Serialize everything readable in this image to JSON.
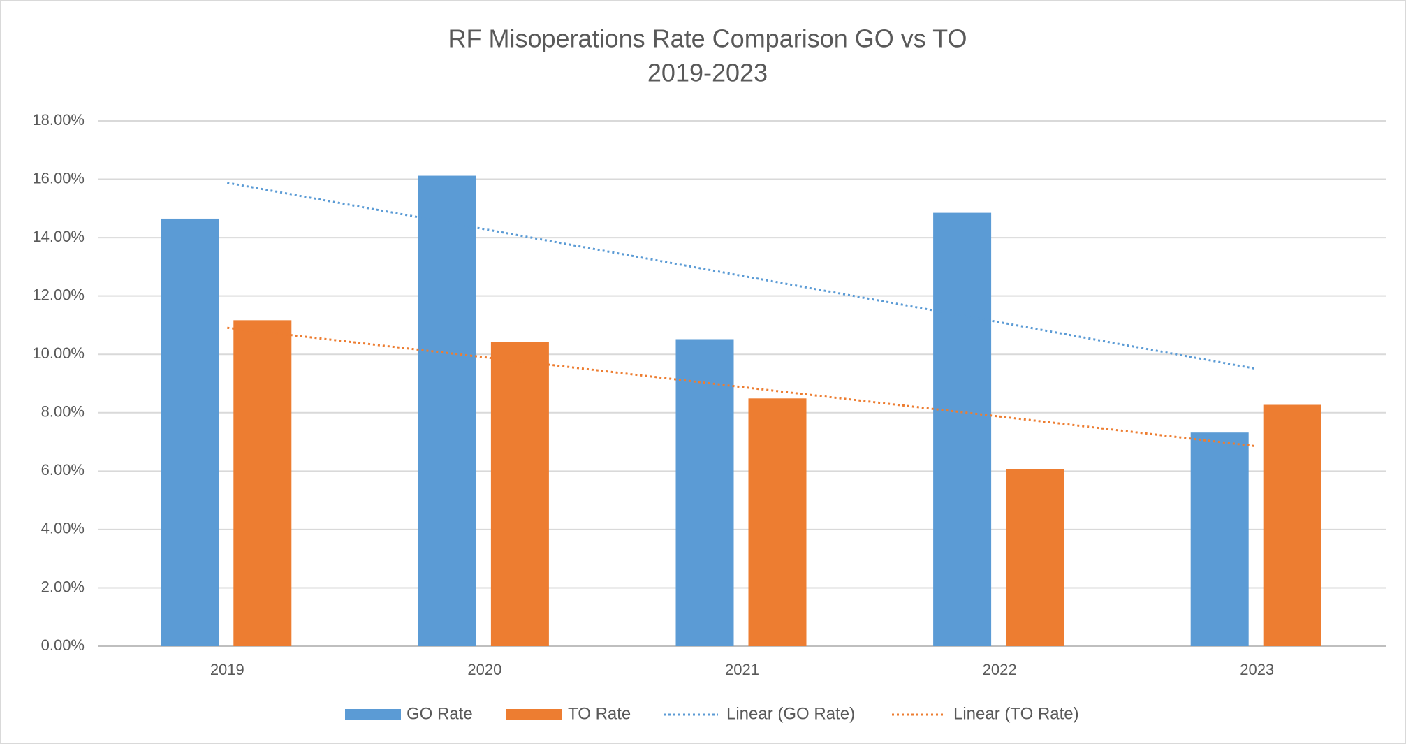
{
  "chart_data": {
    "type": "bar",
    "title": "RF Misoperations Rate Comparison GO vs TO",
    "subtitle": "2019-2023",
    "categories": [
      "2019",
      "2020",
      "2021",
      "2022",
      "2023"
    ],
    "series": [
      {
        "name": "GO Rate",
        "type": "bar",
        "color": "#5b9bd5",
        "values": [
          14.65,
          16.12,
          10.52,
          14.85,
          7.32
        ]
      },
      {
        "name": "TO Rate",
        "type": "bar",
        "color": "#ed7d31",
        "values": [
          11.17,
          10.42,
          8.49,
          6.07,
          8.27
        ]
      },
      {
        "name": "Linear (GO Rate)",
        "type": "line",
        "dotted": true,
        "color": "#5b9bd5",
        "values": [
          15.88,
          14.29,
          12.69,
          11.1,
          9.5
        ]
      },
      {
        "name": "Linear (TO Rate)",
        "type": "line",
        "dotted": true,
        "color": "#ed7d31",
        "values": [
          10.91,
          9.9,
          8.88,
          7.87,
          6.85
        ]
      }
    ],
    "ylim": [
      0,
      18
    ],
    "yticks": [
      {
        "value": 0,
        "label": "0.00%"
      },
      {
        "value": 2,
        "label": "2.00%"
      },
      {
        "value": 4,
        "label": "4.00%"
      },
      {
        "value": 6,
        "label": "6.00%"
      },
      {
        "value": 8,
        "label": "8.00%"
      },
      {
        "value": 10,
        "label": "10.00%"
      },
      {
        "value": 12,
        "label": "12.00%"
      },
      {
        "value": 14,
        "label": "14.00%"
      },
      {
        "value": 16,
        "label": "16.00%"
      },
      {
        "value": 18,
        "label": "18.00%"
      }
    ],
    "grid": true,
    "legend": "bottom"
  }
}
